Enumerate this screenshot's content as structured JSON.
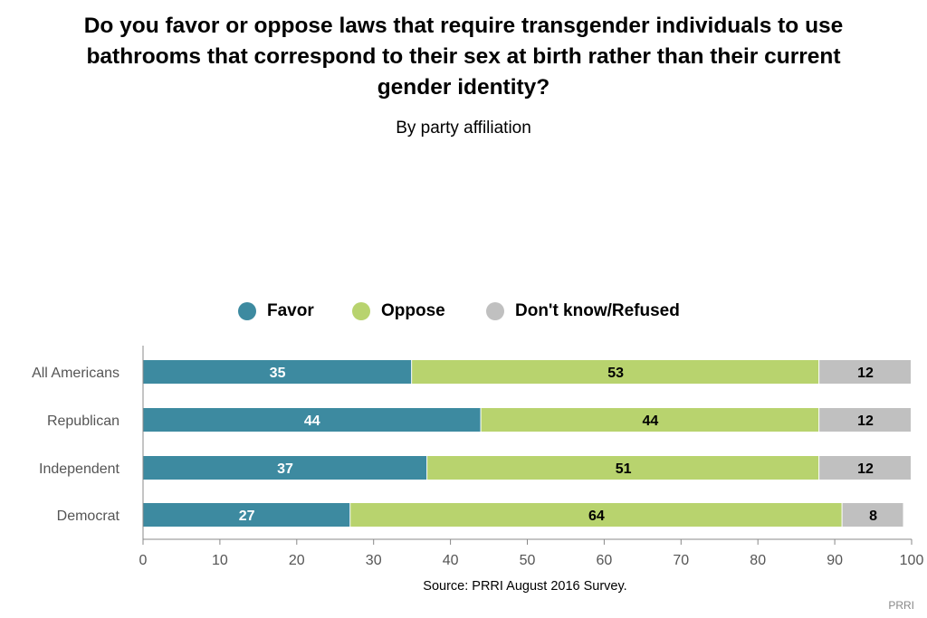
{
  "title": "Do you favor or oppose laws that require transgender individuals to use bathrooms that correspond to their sex at birth rather than their current gender identity?",
  "subtitle": "By party affiliation",
  "source": "Source: PRRI August 2016 Survey.",
  "credit": "PRRI",
  "legend": [
    {
      "label": "Favor",
      "color": "#3d8aa0"
    },
    {
      "label": "Oppose",
      "color": "#b8d36e"
    },
    {
      "label": "Don't know/Refused",
      "color": "#c0c0c0"
    }
  ],
  "chart_data": {
    "type": "bar",
    "orientation": "horizontal",
    "stacked": true,
    "categories": [
      "All Americans",
      "Republican",
      "Independent",
      "Democrat"
    ],
    "series": [
      {
        "name": "Favor",
        "color": "#3d8aa0",
        "label_color": "#ffffff",
        "values": [
          35,
          44,
          37,
          27
        ]
      },
      {
        "name": "Oppose",
        "color": "#b8d36e",
        "label_color": "#000000",
        "values": [
          53,
          44,
          51,
          64
        ]
      },
      {
        "name": "Don't know/Refused",
        "color": "#c0c0c0",
        "label_color": "#000000",
        "values": [
          12,
          12,
          12,
          8
        ]
      }
    ],
    "xlim": [
      0,
      100
    ],
    "xticks": [
      0,
      10,
      20,
      30,
      40,
      50,
      60,
      70,
      80,
      90,
      100
    ],
    "grid": false,
    "legend_position": "top-center"
  }
}
